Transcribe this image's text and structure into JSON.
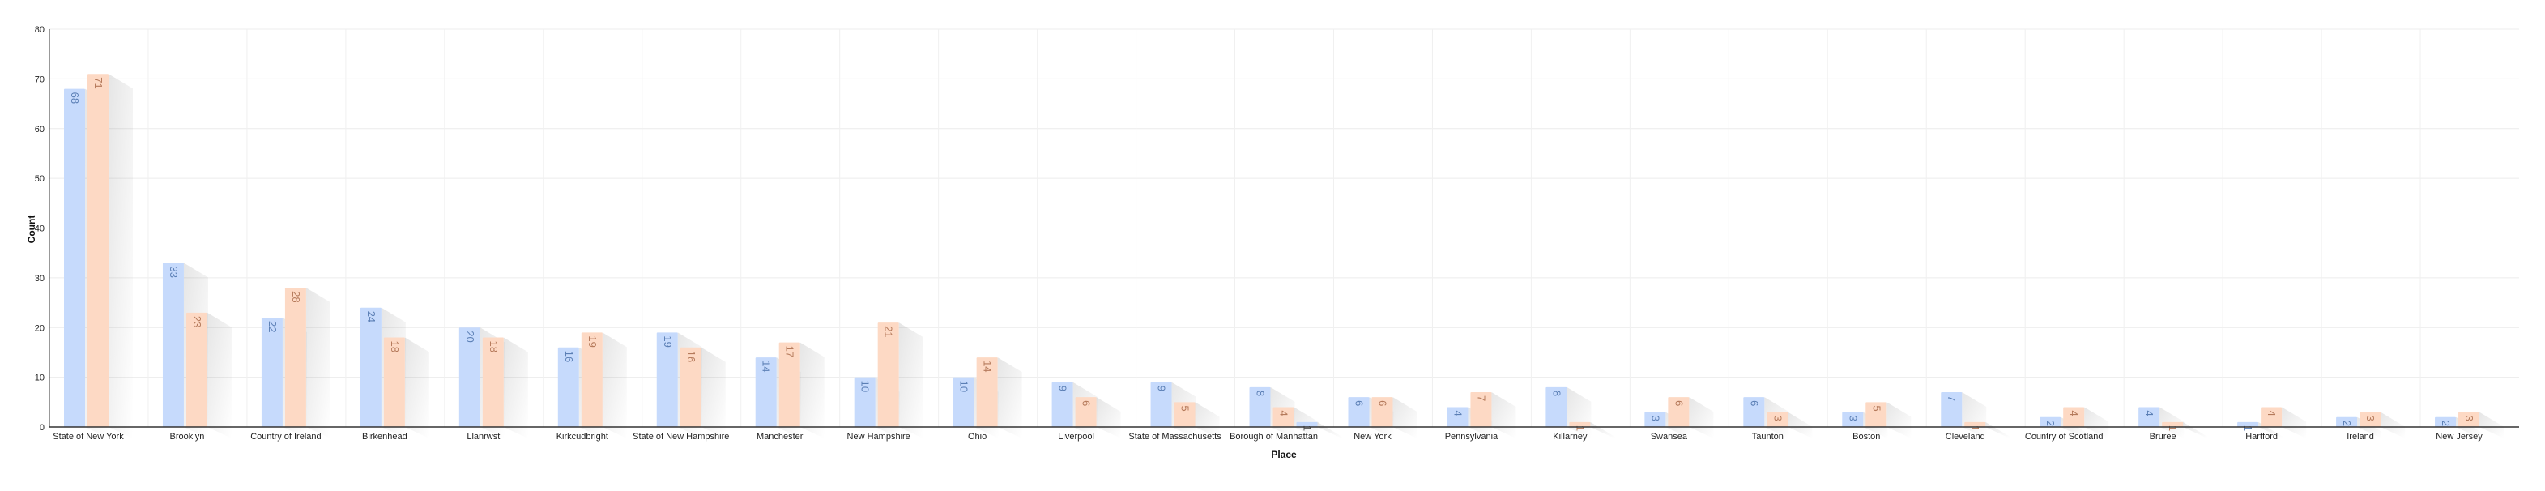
{
  "chart_data": {
    "type": "bar",
    "title": "",
    "xlabel": "Place",
    "ylabel": "Count",
    "ylim": [
      0,
      80
    ],
    "yticks": [
      0,
      10,
      20,
      30,
      40,
      50,
      60,
      70,
      80
    ],
    "grid": true,
    "legend": "none",
    "categories": [
      "State of New York",
      "Brooklyn",
      "Country of Ireland",
      "Birkenhead",
      "Llanrwst",
      "Kirkcudbright",
      "State of New Hampshire",
      "Manchester",
      "New Hampshire",
      "Ohio",
      "Liverpool",
      "State of Massachusetts",
      "Borough of Manhattan",
      "New York",
      "Pennsylvania",
      "Killarney",
      "Swansea",
      "Taunton",
      "Boston",
      "Cleveland",
      "Country of Scotland",
      "Bruree",
      "Hartford",
      "Ireland",
      "New Jersey"
    ],
    "series": [
      {
        "values": [
          68,
          33,
          22,
          24,
          20,
          16,
          19,
          14,
          10,
          10,
          9,
          9,
          8,
          6,
          4,
          8,
          3,
          6,
          3,
          7,
          2,
          4,
          1,
          2,
          2
        ],
        "color": "#c6dafc",
        "label_color": "#5b7fb5"
      },
      {
        "values": [
          71,
          23,
          28,
          18,
          18,
          19,
          16,
          17,
          21,
          14,
          6,
          5,
          4,
          6,
          7,
          1,
          6,
          3,
          5,
          1,
          4,
          1,
          4,
          3,
          3
        ],
        "color": "#fdd9c4",
        "label_color": "#b57a5b"
      },
      {
        "values": [
          0,
          0,
          0,
          0,
          0,
          0,
          0,
          0,
          0,
          0,
          0,
          0,
          1,
          0,
          0,
          0,
          0,
          0,
          0,
          0,
          0,
          0,
          0,
          0,
          0
        ],
        "color": "#c6dafc",
        "label_color": "#555555"
      }
    ]
  }
}
